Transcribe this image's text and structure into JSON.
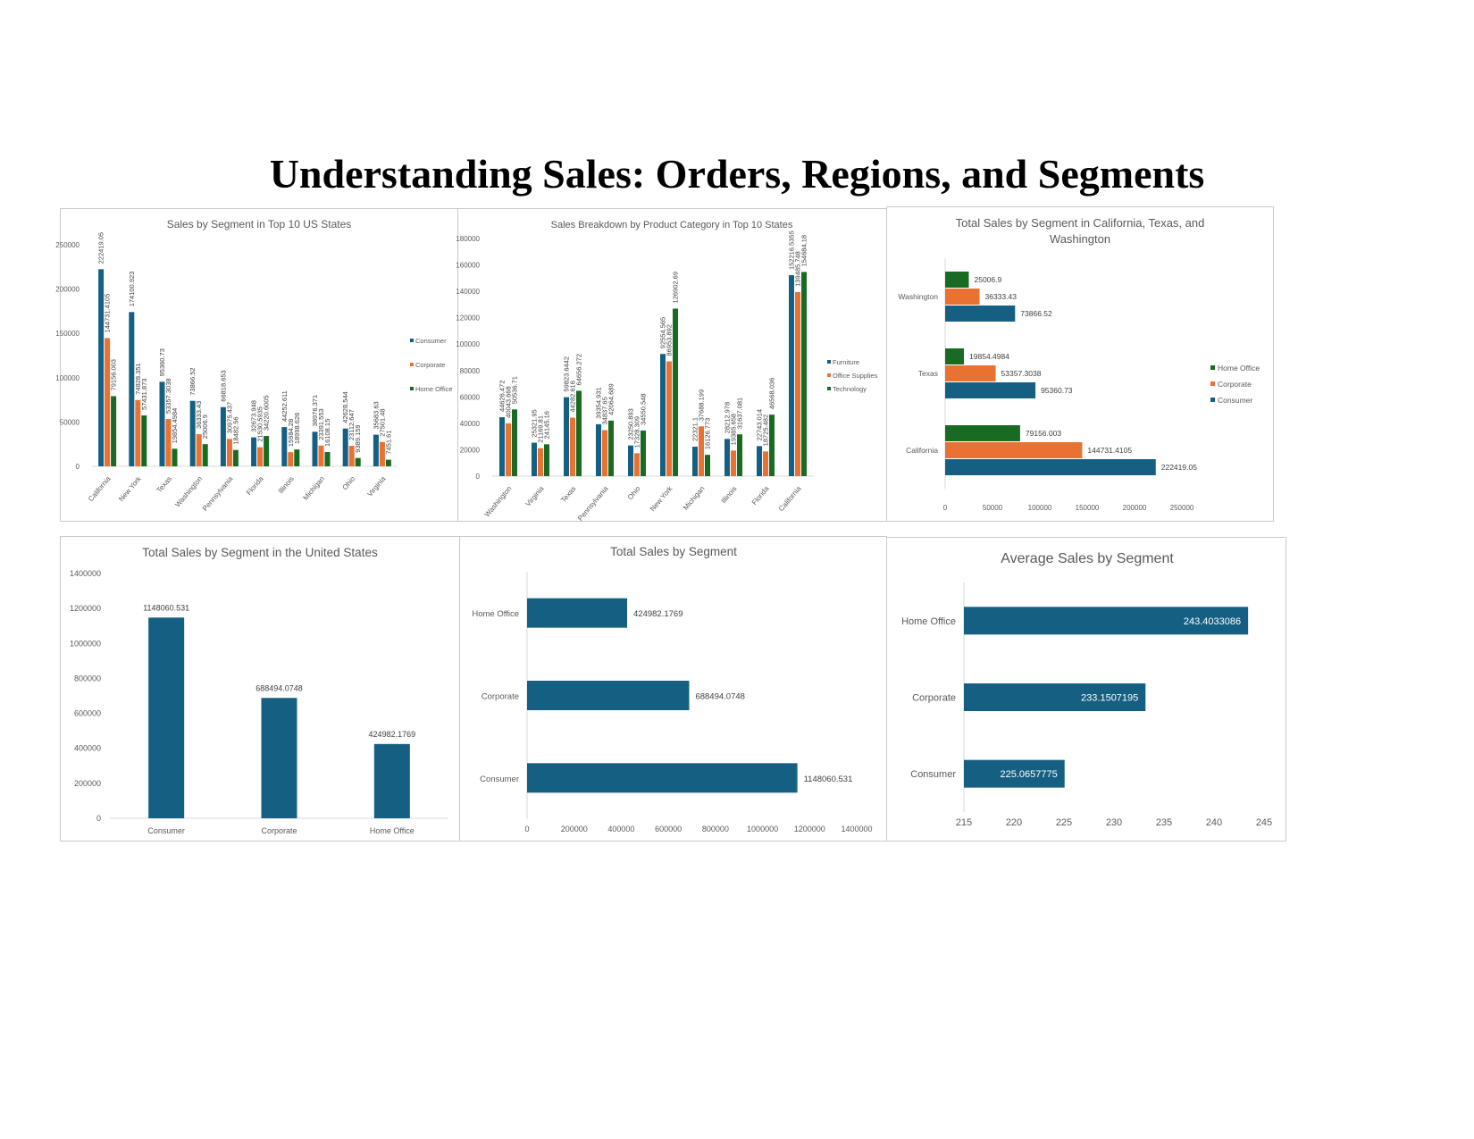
{
  "page": {
    "title": "Understanding Sales: Orders, Regions, and Segments"
  },
  "colors": {
    "consumer": "#156082",
    "corporate": "#E97132",
    "home_office": "#196B24",
    "furniture": "#156082",
    "office_supplies": "#E97132",
    "technology": "#196B24",
    "axis": "#d9d9d9",
    "text": "#595959"
  },
  "chart_data": [
    {
      "id": "c1",
      "type": "bar",
      "title": "Sales by Segment in Top 10 US States",
      "categories": [
        "California",
        "New York",
        "Texas",
        "Washington",
        "Pennsylvania",
        "Florida",
        "Illinois",
        "Michigan",
        "Ohio",
        "Virginia"
      ],
      "series": [
        {
          "name": "Consumer",
          "values": [
            222419.05,
            174100.923,
            95360.73,
            73866.52,
            66818.653,
            32673.948,
            44252.611,
            38976.371,
            42628.544,
            35683.63
          ],
          "labels": [
            "222419.05",
            "174100.923",
            "95360.73",
            "73866.52",
            "66818.653",
            "32673.948",
            "44252.611",
            "38976.371",
            "42628.544",
            "35683.63"
          ]
        },
        {
          "name": "Corporate",
          "values": [
            144731.4105,
            74828.351,
            53357.3038,
            36333.43,
            30975.437,
            21530.5935,
            15984.28,
            23391.553,
            23112.647,
            27501.48
          ],
          "labels": [
            "144731.4105",
            "74828.351",
            "53357.3038",
            "36333.43",
            "30975.437",
            "21530.5935",
            "15984.28",
            "23391.553",
            "23112.647",
            "27501.48"
          ]
        },
        {
          "name": "Home Office",
          "values": [
            79156.003,
            57431.873,
            19854.4984,
            25006.9,
            18482.56,
            34220.6005,
            18998.626,
            16108.15,
            9389.159,
            7451.61
          ],
          "labels": [
            "79156.003",
            "57431.873",
            "19854.4984",
            "25006.9",
            "18482.56",
            "34220.6005",
            "18998.626",
            "16108.15",
            "9389.159",
            "7451.61"
          ]
        }
      ],
      "ylim": [
        0,
        250000
      ],
      "yticks": [
        "0",
        "50000",
        "100000",
        "150000",
        "200000",
        "250000"
      ],
      "legend": "right"
    },
    {
      "id": "c2",
      "type": "bar",
      "title": "Sales Breakdown by Product Category in Top 10 States",
      "categories": [
        "Washington",
        "Virginia",
        "Texas",
        "Pennsylvania",
        "Ohio",
        "New York",
        "Michigan",
        "Illinois",
        "Florida",
        "California"
      ],
      "series": [
        {
          "name": "Furniture",
          "values": [
            44626.472,
            25321.95,
            59823.6442,
            39354.931,
            23250.893,
            92554.565,
            22321.1,
            28212.978,
            22743.014,
            152216.5355
          ],
          "labels": [
            "44626.472",
            "25321.95",
            "59823.6442",
            "39354.931",
            "23250.893",
            "92554.565",
            "22321.1",
            "28212.978",
            "22743.014",
            "152216.5355"
          ]
        },
        {
          "name": "Office Supplies",
          "values": [
            40043.668,
            21169.81,
            44282.616,
            34837.65,
            17328.309,
            86953.892,
            37688.199,
            19385.658,
            18725.482,
            139485.748
          ],
          "labels": [
            "40043.668",
            "21169.81",
            "44282.616",
            "34837.65",
            "17328.309",
            "86953.892",
            "37688.199",
            "19385.658",
            "18725.482",
            "139485.748"
          ]
        },
        {
          "name": "Technology",
          "values": [
            50536.71,
            24145.16,
            64656.272,
            42064.689,
            34550.548,
            126902.69,
            16126.773,
            31637.081,
            46568.036,
            154684.18
          ],
          "labels": [
            "50536.71",
            "24145.16",
            "64656.272",
            "42064.689",
            "34550.548",
            "126902.69",
            "16126.773",
            "31637.081",
            "46568.036",
            "154684.18"
          ]
        }
      ],
      "ylim": [
        0,
        180000
      ],
      "yticks": [
        "0",
        "20000",
        "40000",
        "60000",
        "80000",
        "100000",
        "120000",
        "140000",
        "160000",
        "180000"
      ],
      "legend": "right"
    },
    {
      "id": "c3",
      "type": "bar",
      "orientation": "horizontal",
      "title": "Total Sales by Segment in California, Texas, and Washington",
      "categories": [
        "Washington",
        "Texas",
        "California"
      ],
      "series": [
        {
          "name": "Home Office",
          "values": [
            25006.9,
            19854.4984,
            79156.003
          ],
          "labels": [
            "25006.9",
            "19854.4984",
            "79156.003"
          ]
        },
        {
          "name": "Corporate",
          "values": [
            36333.43,
            53357.3038,
            144731.4105
          ],
          "labels": [
            "36333.43",
            "53357.3038",
            "144731.4105"
          ]
        },
        {
          "name": "Consumer",
          "values": [
            73866.52,
            95360.73,
            222419.05
          ],
          "labels": [
            "73866.52",
            "95360.73",
            "222419.05"
          ]
        }
      ],
      "xlim": [
        0,
        250000
      ],
      "xticks": [
        "0",
        "50000",
        "100000",
        "150000",
        "200000",
        "250000"
      ],
      "legend": "right"
    },
    {
      "id": "c4",
      "type": "bar",
      "title": "Total Sales by Segment in the United States",
      "categories": [
        "Consumer",
        "Corporate",
        "Home Office"
      ],
      "values": [
        1148060.531,
        688494.0748,
        424982.1769
      ],
      "labels": [
        "1148060.531",
        "688494.0748",
        "424982.1769"
      ],
      "ylim": [
        0,
        1400000
      ],
      "yticks": [
        "0",
        "200000",
        "400000",
        "600000",
        "800000",
        "1000000",
        "1200000",
        "1400000"
      ]
    },
    {
      "id": "c5",
      "type": "bar",
      "orientation": "horizontal",
      "title": "Total Sales by Segment",
      "categories": [
        "Home Office",
        "Corporate",
        "Consumer"
      ],
      "values": [
        424982.1769,
        688494.0748,
        1148060.531
      ],
      "labels": [
        "424982.1769",
        "688494.0748",
        "1148060.531"
      ],
      "xlim": [
        0,
        1400000
      ],
      "xticks": [
        "0",
        "200000",
        "400000",
        "600000",
        "800000",
        "1000000",
        "1200000",
        "1400000"
      ]
    },
    {
      "id": "c6",
      "type": "bar",
      "orientation": "horizontal",
      "title": "Average Sales by Segment",
      "categories": [
        "Home Office",
        "Corporate",
        "Consumer"
      ],
      "values": [
        243.4033086,
        233.1507195,
        225.0657775
      ],
      "labels": [
        "243.4033086",
        "233.1507195",
        "225.0657775"
      ],
      "xlim": [
        215,
        245
      ],
      "xticks": [
        "215",
        "220",
        "225",
        "230",
        "235",
        "240",
        "245"
      ]
    }
  ]
}
